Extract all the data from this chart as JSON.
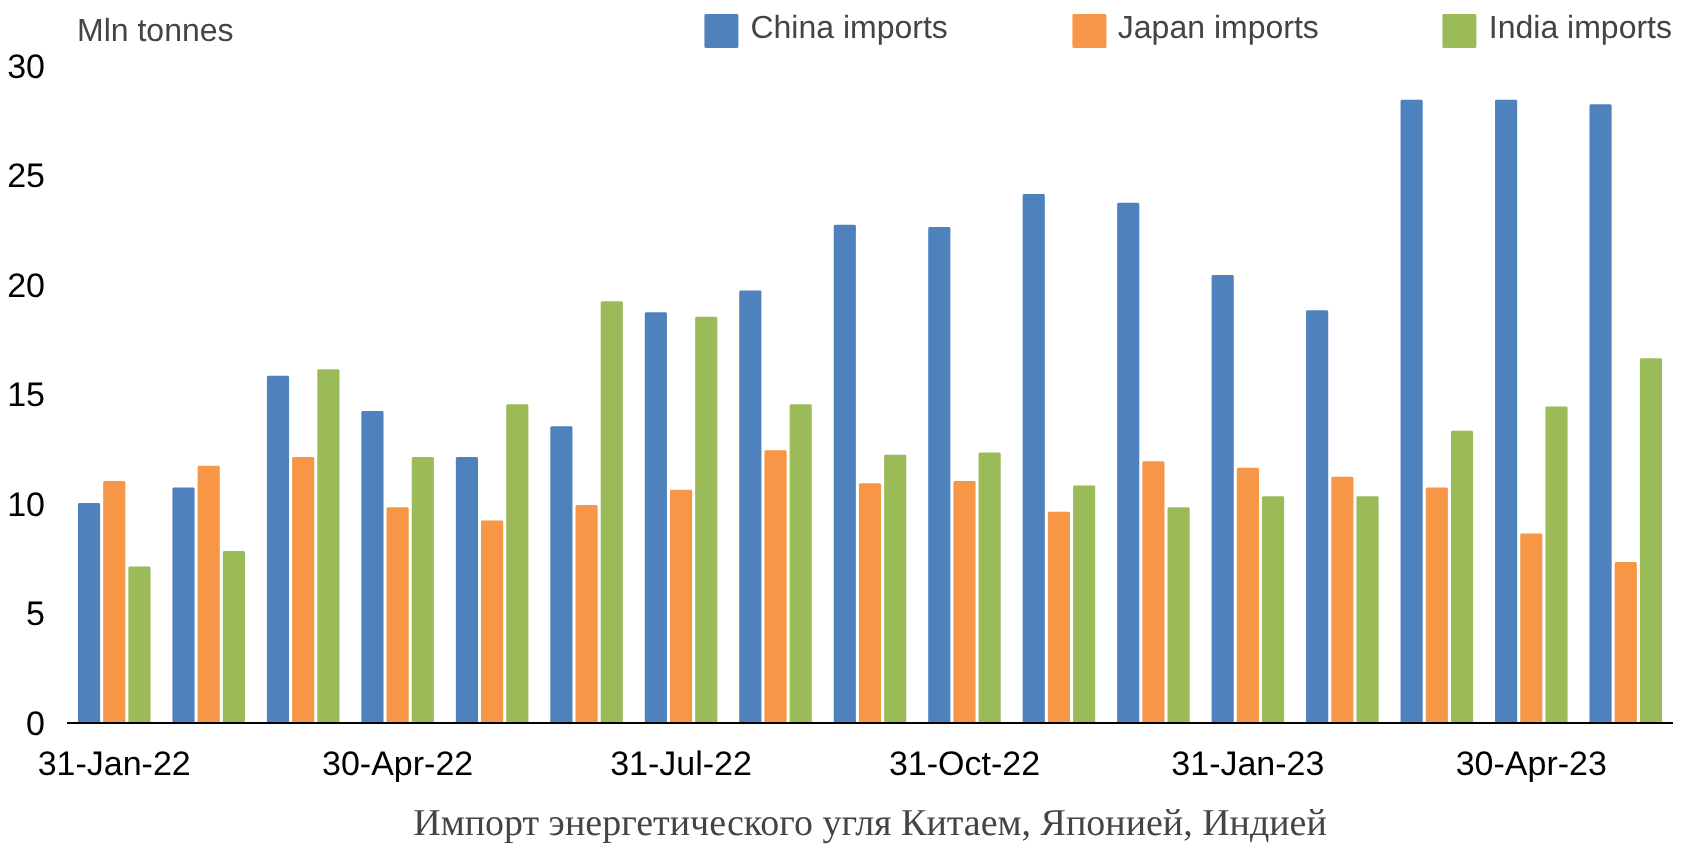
{
  "chart_data": {
    "type": "bar",
    "title": "Импорт энергетического угля Китаем, Японией, Индией",
    "ylabel": "Mln tonnes",
    "categories": [
      "31-Jan-22",
      null,
      null,
      "30-Apr-22",
      null,
      null,
      "31-Jul-22",
      null,
      null,
      "31-Oct-22",
      null,
      null,
      "31-Jan-23",
      null,
      null,
      "30-Apr-23",
      null
    ],
    "series": [
      {
        "name": "China imports",
        "color": "#4f81bd",
        "values": [
          10.0,
          10.7,
          15.8,
          14.2,
          12.1,
          13.5,
          18.7,
          19.7,
          22.7,
          22.6,
          24.1,
          23.7,
          20.4,
          18.8,
          28.4,
          28.4,
          28.2
        ]
      },
      {
        "name": "Japan imports",
        "color": "#f79646",
        "values": [
          11.0,
          11.7,
          12.1,
          9.8,
          9.2,
          9.9,
          10.6,
          12.4,
          10.9,
          11.0,
          9.6,
          11.9,
          11.6,
          11.2,
          10.7,
          8.6,
          7.3
        ]
      },
      {
        "name": "India imports",
        "color": "#9bbb59",
        "values": [
          7.1,
          7.8,
          16.1,
          12.1,
          14.5,
          19.2,
          18.5,
          14.5,
          12.2,
          12.3,
          10.8,
          9.8,
          10.3,
          10.3,
          13.3,
          14.4,
          16.6
        ]
      }
    ],
    "ylim": [
      0,
      32.5
    ],
    "yticks": [
      0,
      5,
      10,
      15,
      20,
      25,
      30
    ],
    "grid": false,
    "legend": "top"
  }
}
